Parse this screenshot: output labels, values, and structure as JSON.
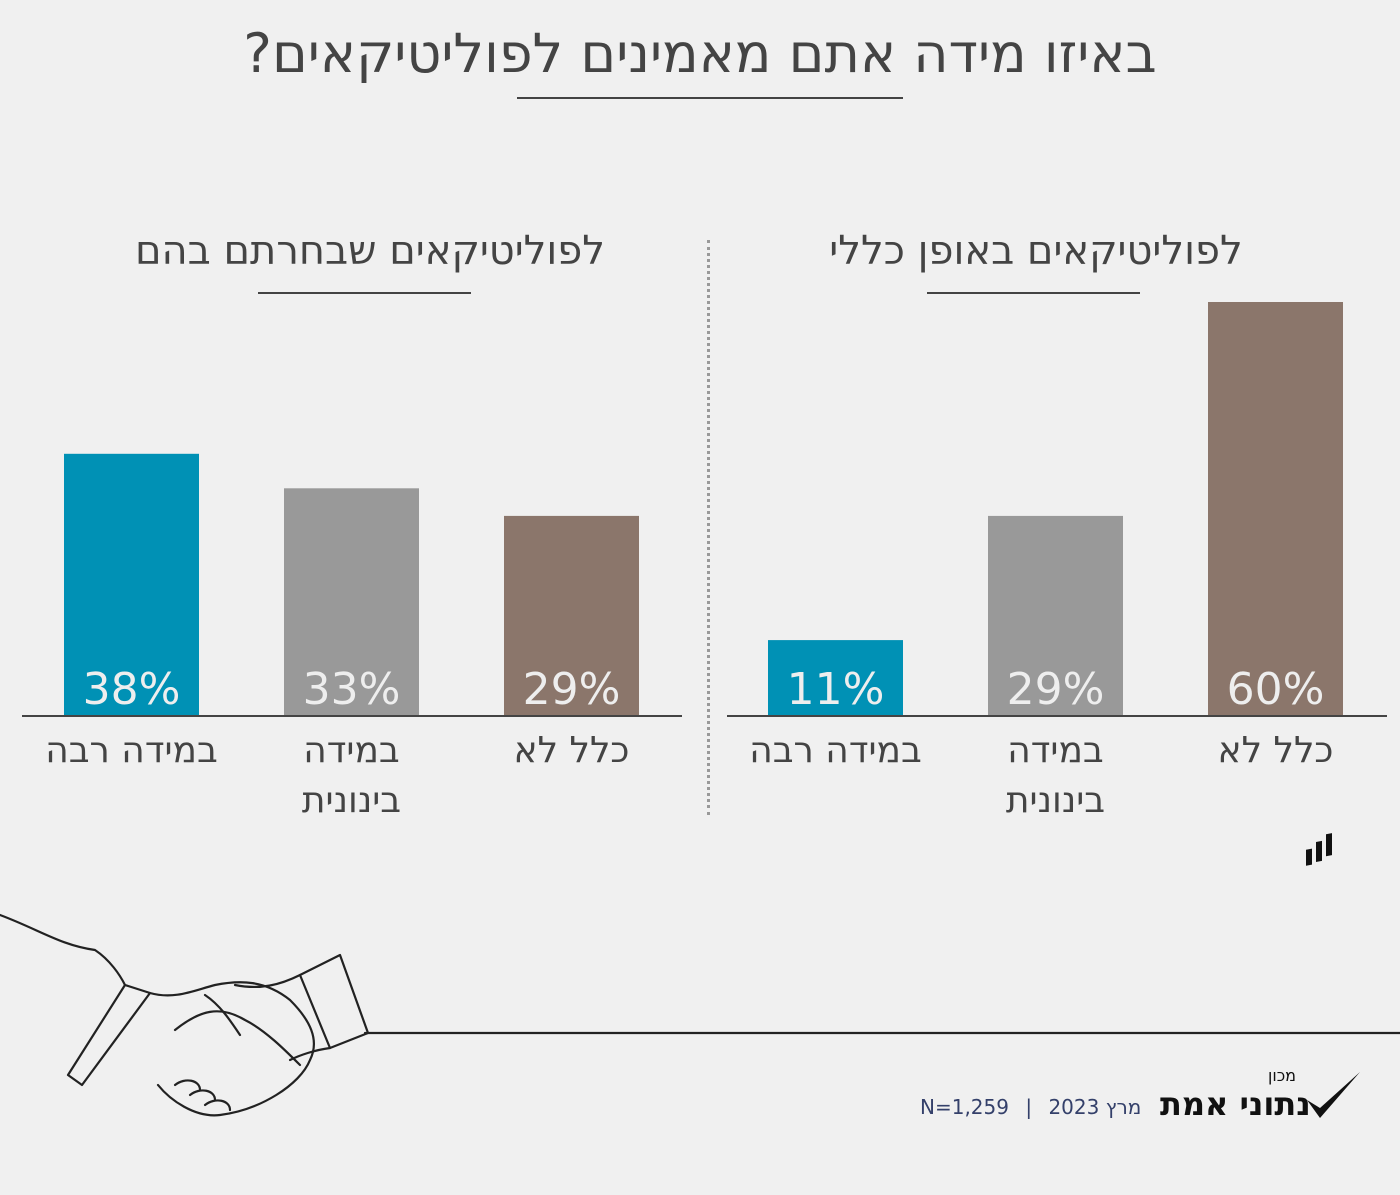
{
  "title": "באיזו מידה אתם מאמינים לפוליטיקאים?",
  "footer": {
    "date": "מרץ 2023",
    "sample": "N=1,259",
    "separator": "|"
  },
  "logo": {
    "small": "מכון",
    "name": "נתוני אמת"
  },
  "colors": {
    "high": "#0091b5",
    "medium": "#999999",
    "none": "#8b766b",
    "background": "#f0f0f0"
  },
  "chart_data": [
    {
      "type": "bar",
      "title": "לפוליטיקאים באופן כללי",
      "categories": [
        "במידה רבה",
        "במידה בינונית",
        "כלל לא"
      ],
      "values": [
        11,
        29,
        60
      ],
      "value_labels": [
        "11%",
        "29%",
        "60%"
      ],
      "ylim": [
        0,
        60
      ],
      "grid": false
    },
    {
      "type": "bar",
      "title": "לפוליטיקאים שבחרתם בהם",
      "categories": [
        "במידה רבה",
        "במידה בינונית",
        "כלל לא"
      ],
      "values": [
        38,
        33,
        29
      ],
      "value_labels": [
        "38%",
        "33%",
        "29%"
      ],
      "ylim": [
        0,
        60
      ],
      "grid": false
    }
  ]
}
